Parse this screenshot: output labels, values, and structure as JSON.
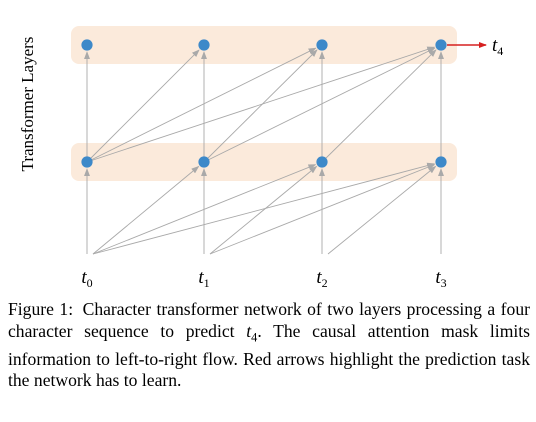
{
  "ylabel": "Transformer Layers",
  "tokens": [
    {
      "sym": "t",
      "sub": "0"
    },
    {
      "sym": "t",
      "sub": "1"
    },
    {
      "sym": "t",
      "sub": "2"
    },
    {
      "sym": "t",
      "sub": "3"
    }
  ],
  "target": {
    "sym": "t",
    "sub": "4"
  },
  "colors": {
    "node": "#3d89c9",
    "band": "#fbeadb",
    "edge": "#a9a9a9",
    "target_arrow": "#d62020"
  },
  "caption": {
    "label": "Figure 1:",
    "text_part1": "Character transformer network of two layers processing a four character sequence to predict ",
    "target_sym": "t",
    "target_sub": "4",
    "text_part2": ". The causal attention mask limits information to left-to-right flow. Red arrows highlight the prediction task the network has to learn."
  }
}
